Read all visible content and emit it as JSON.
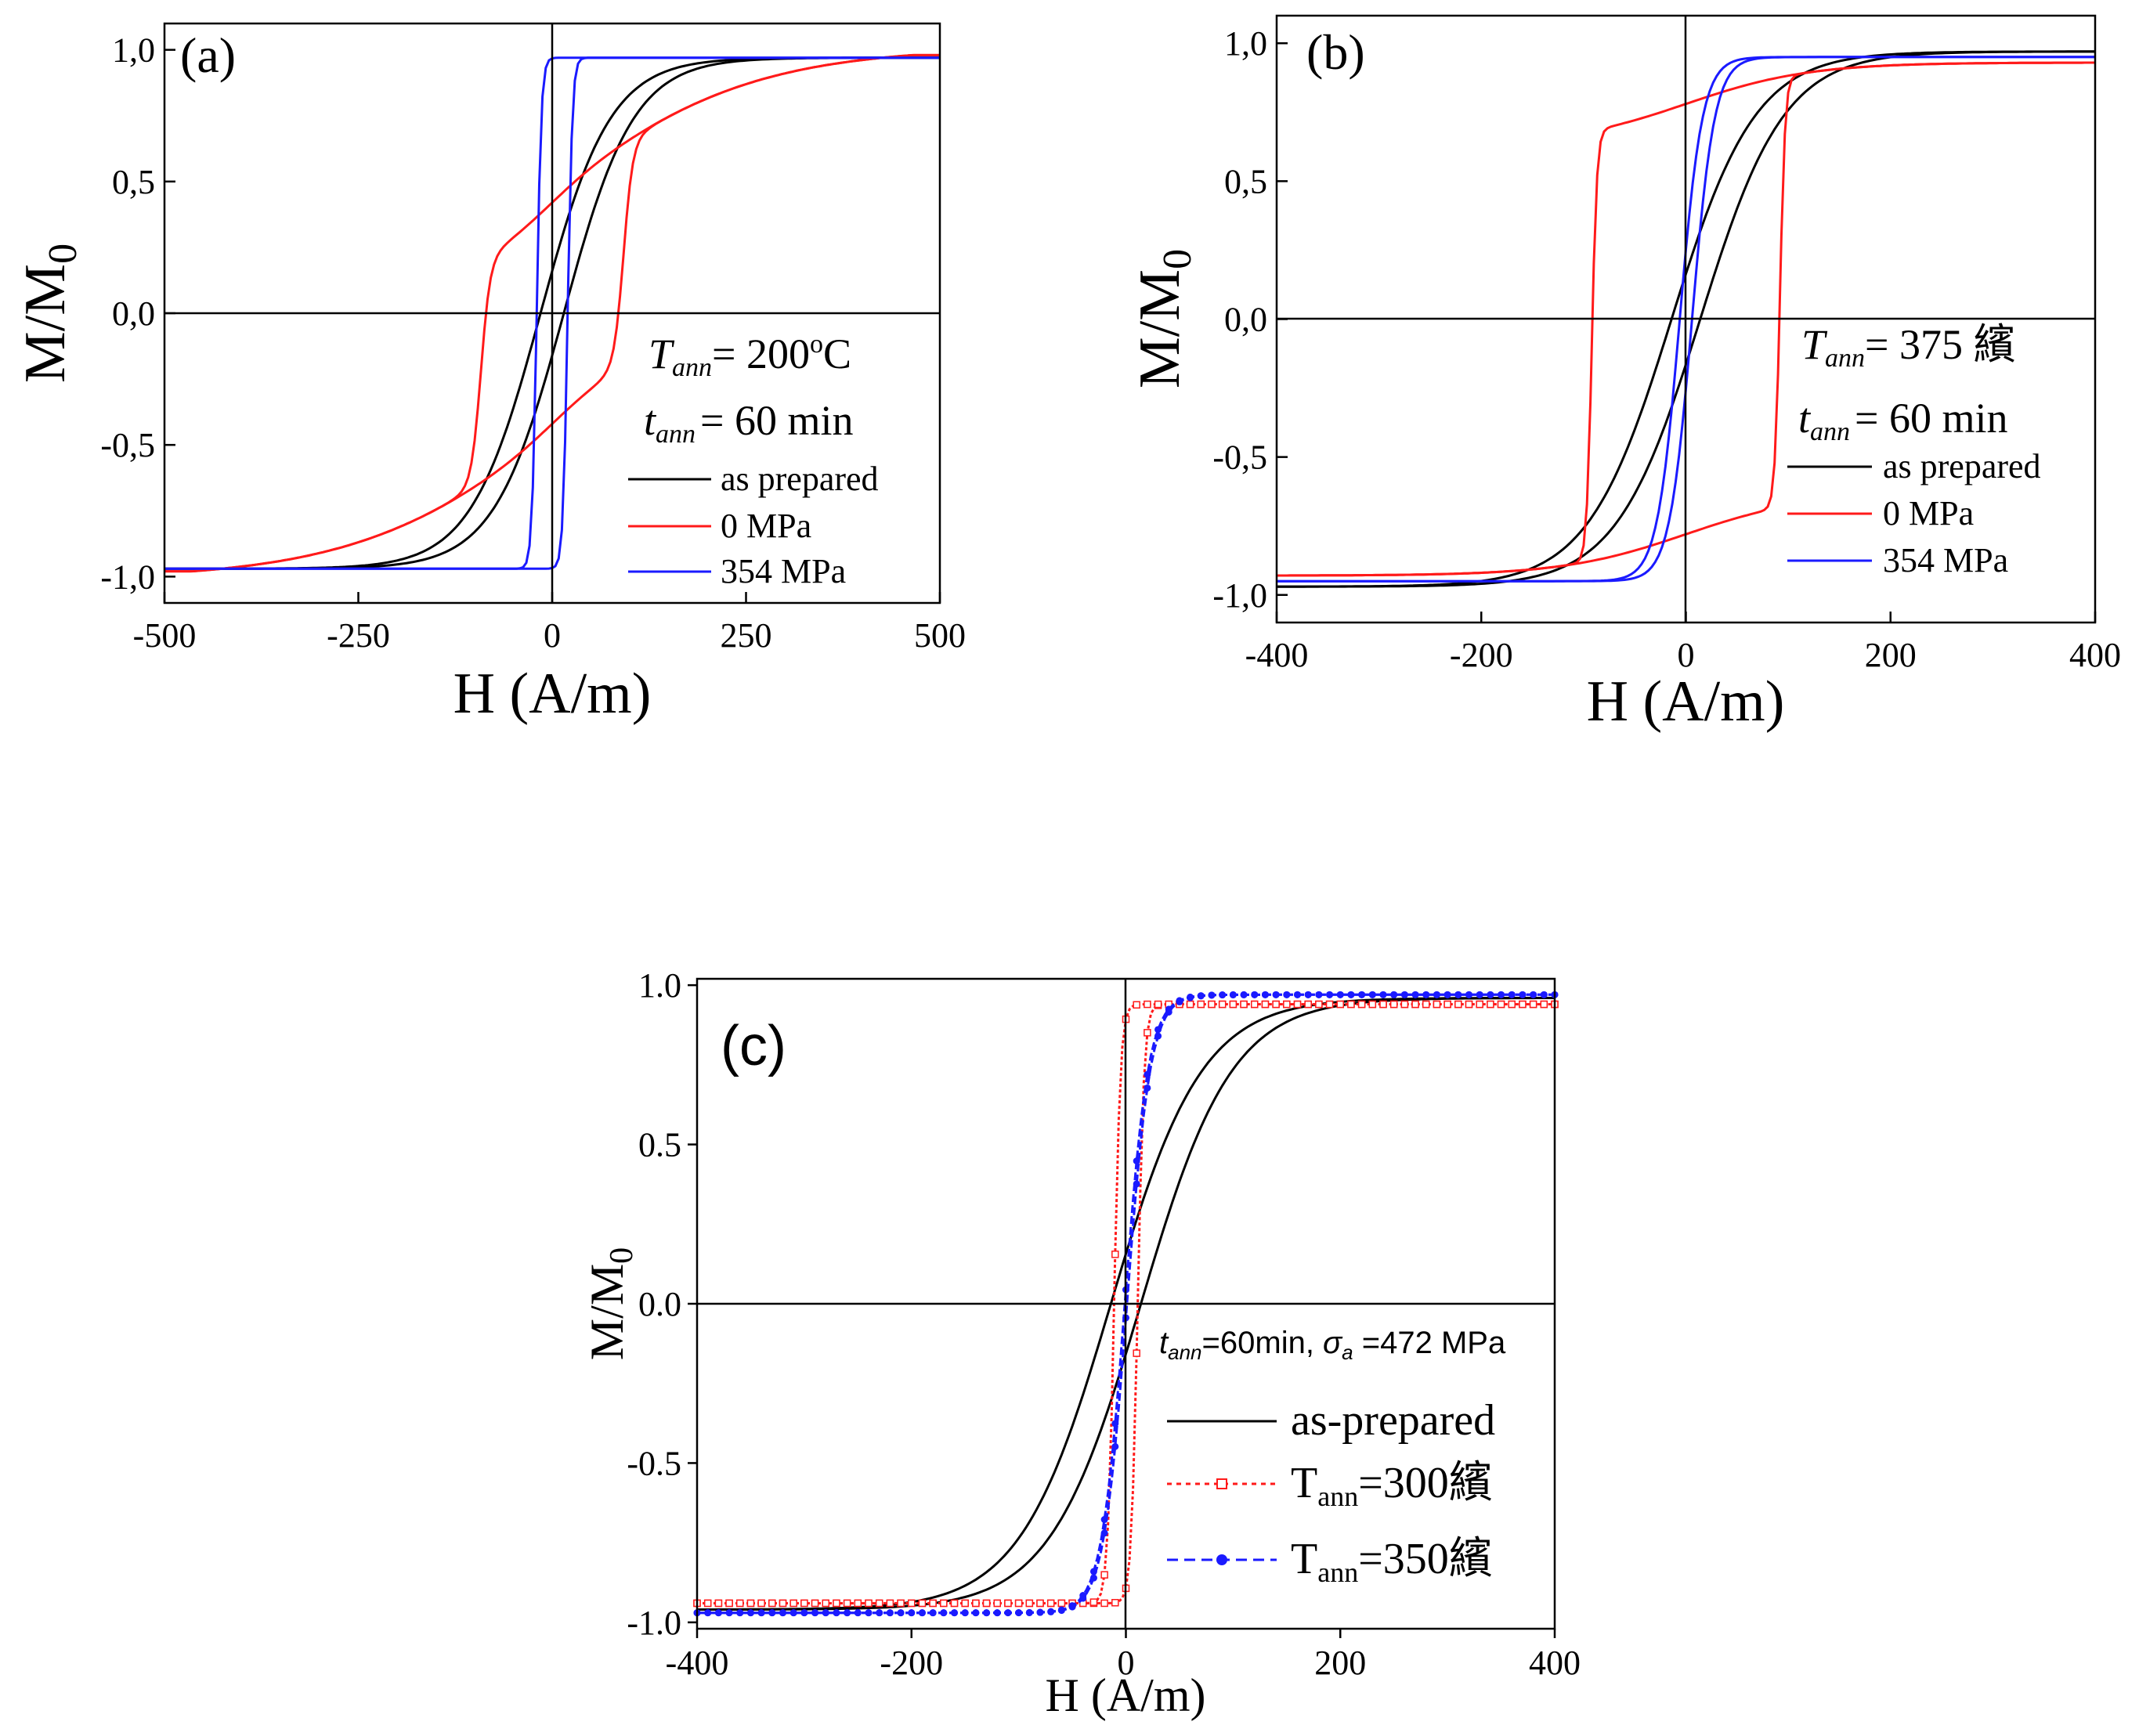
{
  "colors": {
    "axis": "#000000",
    "as_prepared": "#000000",
    "red": "#ff1a1a",
    "blue": "#1a1aff"
  },
  "chart_data": [
    {
      "panel": "(a)",
      "type": "line",
      "xlabel": "H (A/m)",
      "ylabel_main": "M/M",
      "ylabel_sub": "0",
      "xlim": [
        -500,
        500
      ],
      "ylim": [
        -1.1,
        1.1
      ],
      "xticks": [
        -500,
        -250,
        0,
        250,
        500
      ],
      "xtick_labels": [
        "-500",
        "-250",
        "0",
        "250",
        "500"
      ],
      "yticks": [
        -1.0,
        -0.5,
        0.0,
        0.5,
        1.0
      ],
      "ytick_labels": [
        "-1,0",
        "-0,5",
        "0,0",
        "0,5",
        "1,0"
      ],
      "annotation_T": {
        "prefix": "T",
        "sub": "ann",
        "text": "= 200",
        "sup": "o",
        "suffix": "C"
      },
      "annotation_t": {
        "prefix": "t",
        "sub": "ann",
        "text": "= 60 min"
      },
      "legend_position": "bottom-right",
      "series": [
        {
          "name": "as prepared",
          "color": "#000000",
          "Hc": 15,
          "scale": 90,
          "kind": "tanh",
          "sat": 0.97
        },
        {
          "name": "0 MPa",
          "color": "#ff1a1a",
          "Hc": 92,
          "kind": "annealed",
          "Mr": 0.32,
          "step_h": 0.42,
          "k": 260,
          "slope_out": 0.00055
        },
        {
          "name": "354 MPa",
          "color": "#1a1aff",
          "Hc": 20,
          "scale": 6,
          "kind": "tanh",
          "sat": 0.97
        }
      ]
    },
    {
      "panel": "(b)",
      "type": "line",
      "xlabel": "H (A/m)",
      "ylabel_main": "M/M",
      "ylabel_sub": "0",
      "xlim": [
        -400,
        400
      ],
      "ylim": [
        -1.1,
        1.1
      ],
      "xticks": [
        -400,
        -200,
        0,
        200,
        400
      ],
      "xtick_labels": [
        "-400",
        "-200",
        "0",
        "200",
        "400"
      ],
      "yticks": [
        -1.0,
        -0.5,
        0.0,
        0.5,
        1.0
      ],
      "ytick_labels": [
        "-1,0",
        "-0,5",
        "0,0",
        "0,5",
        "1,0"
      ],
      "annotation_T": {
        "prefix": "T",
        "sub": "ann",
        "text": "= 375 繽"
      },
      "annotation_t": {
        "prefix": "t",
        "sub": "ann",
        "text": "= 60 min"
      },
      "legend_position": "bottom-right",
      "series": [
        {
          "name": "as prepared",
          "color": "#000000",
          "Hc": 14,
          "scale": 82,
          "kind": "tanh",
          "sat": 0.97
        },
        {
          "name": "0 MPa",
          "color": "#ff1a1a",
          "Hc": 92,
          "scale": 5,
          "kind": "tanh",
          "sat": 0.93,
          "sat_low": 0.78,
          "tail": 0.15
        },
        {
          "name": "354 MPa",
          "color": "#1a1aff",
          "Hc": 6,
          "scale": 22,
          "kind": "tanh",
          "sat": 0.95
        }
      ]
    },
    {
      "panel": "(c)",
      "type": "line",
      "xlabel": "H (A/m)",
      "ylabel_main": "M/M",
      "ylabel_sub": "0",
      "xlim": [
        -400,
        400
      ],
      "ylim": [
        -1.02,
        1.02
      ],
      "xticks": [
        -400,
        -200,
        0,
        200,
        400
      ],
      "xtick_labels": [
        "-400",
        "-200",
        "0",
        "200",
        "400"
      ],
      "yticks": [
        -1.0,
        -0.5,
        0.0,
        0.5,
        1.0
      ],
      "ytick_labels": [
        "-1.0",
        "-0.5",
        "0.0",
        "0.5",
        "1.0"
      ],
      "annotation": {
        "t": "t",
        "t_sub": "ann",
        "text1": "=60min, ",
        "sigma": "σ",
        "sigma_sub": "a",
        "text2": " =472 MPa"
      },
      "legend_position": "bottom-right",
      "series": [
        {
          "name": "as-prepared",
          "color": "#000000",
          "Hc": 14,
          "scale": 85,
          "kind": "tanh",
          "sat": 0.96
        },
        {
          "name_prefix": "T",
          "name_sub": "ann",
          "name_suffix": "=300繽",
          "color": "#ff1a1a",
          "Hc": 11,
          "scale": 6,
          "kind": "tanh",
          "sat": 0.94,
          "marker": "square",
          "dash": true
        },
        {
          "name_prefix": "T",
          "name_sub": "ann",
          "name_suffix": "=350繽",
          "color": "#1a1aff",
          "Hc": 1,
          "scale": 22,
          "kind": "tanh",
          "sat": 0.97,
          "marker": "dot",
          "dash": true
        }
      ]
    }
  ]
}
